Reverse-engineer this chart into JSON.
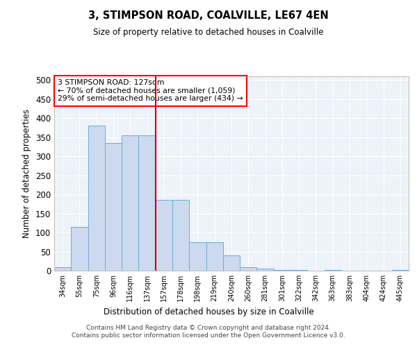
{
  "title": "3, STIMPSON ROAD, COALVILLE, LE67 4EN",
  "subtitle": "Size of property relative to detached houses in Coalville",
  "xlabel": "Distribution of detached houses by size in Coalville",
  "ylabel": "Number of detached properties",
  "bins": [
    "34sqm",
    "55sqm",
    "75sqm",
    "96sqm",
    "116sqm",
    "137sqm",
    "157sqm",
    "178sqm",
    "198sqm",
    "219sqm",
    "240sqm",
    "260sqm",
    "281sqm",
    "301sqm",
    "322sqm",
    "342sqm",
    "363sqm",
    "383sqm",
    "404sqm",
    "424sqm",
    "445sqm"
  ],
  "values": [
    10,
    115,
    380,
    335,
    355,
    355,
    185,
    185,
    75,
    75,
    40,
    10,
    5,
    2,
    1,
    0,
    1,
    0,
    0,
    0,
    1
  ],
  "bar_color": "#ccd9ee",
  "bar_edge_color": "#6baed6",
  "vline_color": "#cc0000",
  "vline_pos": 5.5,
  "annotation_text": "3 STIMPSON ROAD: 127sqm\n← 70% of detached houses are smaller (1,059)\n29% of semi-detached houses are larger (434) →",
  "background_color": "#eef2f9",
  "grid_color": "#ffffff",
  "footnote": "Contains HM Land Registry data © Crown copyright and database right 2024.\nContains public sector information licensed under the Open Government Licence v3.0.",
  "ylim": [
    0,
    510
  ],
  "yticks": [
    0,
    50,
    100,
    150,
    200,
    250,
    300,
    350,
    400,
    450,
    500
  ]
}
